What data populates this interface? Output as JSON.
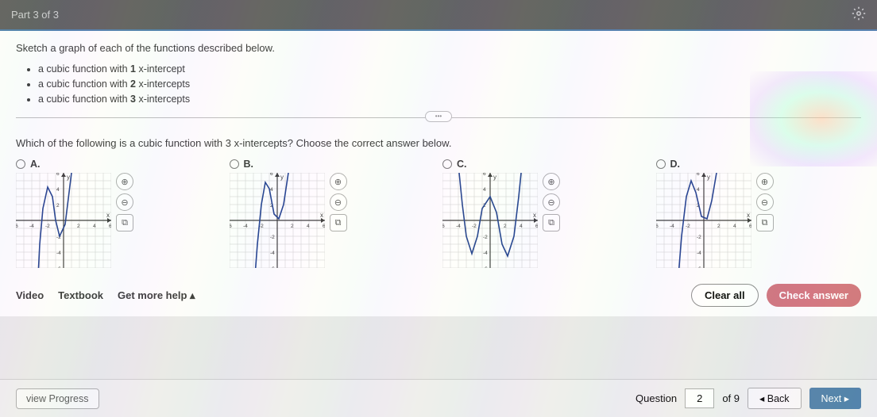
{
  "header": {
    "part_label": "Part 3 of 3"
  },
  "instruction": "Sketch a graph of each of the functions described below.",
  "bullets": [
    {
      "pre": "a cubic function with ",
      "num": "1",
      "post": " x-intercept"
    },
    {
      "pre": "a cubic function with ",
      "num": "2",
      "post": " x-intercepts"
    },
    {
      "pre": "a cubic function with ",
      "num": "3",
      "post": " x-intercepts"
    }
  ],
  "question": "Which of the following is a cubic function with 3 x-intercepts? Choose the correct answer below.",
  "options": [
    {
      "label": "A."
    },
    {
      "label": "B."
    },
    {
      "label": "C."
    },
    {
      "label": "D."
    }
  ],
  "graph": {
    "xmin": -6,
    "xmax": 6,
    "ymin": -6,
    "ymax": 6,
    "grid_color": "#c9c9c9",
    "axis_color": "#333",
    "curve_color": "#1a3a8a",
    "curve_width": 1.6,
    "axis_label_x": "x",
    "axis_label_y": "y",
    "tick_labels": [
      "-6",
      "-4",
      "-2",
      "2",
      "4",
      "6"
    ],
    "curves": {
      "A": [
        [
          -3.2,
          -7
        ],
        [
          -3,
          -3
        ],
        [
          -2.6,
          1.5
        ],
        [
          -2,
          4.2
        ],
        [
          -1.4,
          3
        ],
        [
          -1,
          0
        ],
        [
          -0.5,
          -2
        ],
        [
          0.2,
          -0.5
        ],
        [
          1,
          6
        ],
        [
          1.4,
          8
        ]
      ],
      "B": [
        [
          -2.8,
          -7
        ],
        [
          -2.5,
          -3
        ],
        [
          -2,
          2
        ],
        [
          -1.5,
          4.8
        ],
        [
          -1,
          4
        ],
        [
          -0.4,
          0.8
        ],
        [
          0.2,
          0.2
        ],
        [
          0.8,
          2
        ],
        [
          1.4,
          6
        ],
        [
          1.8,
          8
        ]
      ],
      "C": [
        [
          -4,
          7
        ],
        [
          -3.5,
          2
        ],
        [
          -3,
          -2
        ],
        [
          -2.3,
          -4.2
        ],
        [
          -1.6,
          -2
        ],
        [
          -1,
          1.5
        ],
        [
          0,
          3
        ],
        [
          0.8,
          1
        ],
        [
          1.5,
          -3
        ],
        [
          2.2,
          -4.5
        ],
        [
          3,
          -2
        ],
        [
          3.6,
          3
        ],
        [
          4,
          7
        ]
      ],
      "D": [
        [
          -3.2,
          -7
        ],
        [
          -2.8,
          -2
        ],
        [
          -2.2,
          3
        ],
        [
          -1.6,
          5
        ],
        [
          -1,
          3.5
        ],
        [
          -0.3,
          0.5
        ],
        [
          0.4,
          0.2
        ],
        [
          1,
          2.5
        ],
        [
          1.6,
          6
        ],
        [
          2,
          8
        ]
      ]
    }
  },
  "tools": {
    "zoom_in": "⊕",
    "zoom_out": "⊖",
    "popout": "⧉"
  },
  "help": {
    "video": "Video",
    "textbook": "Textbook",
    "more": "Get more help ▴",
    "clear": "Clear all",
    "check": "Check answer"
  },
  "footer": {
    "view_progress": "view Progress",
    "question_label": "Question",
    "question_num": "2",
    "of_label": "of 9",
    "back": "◂  Back",
    "next": "Next  ▸"
  }
}
